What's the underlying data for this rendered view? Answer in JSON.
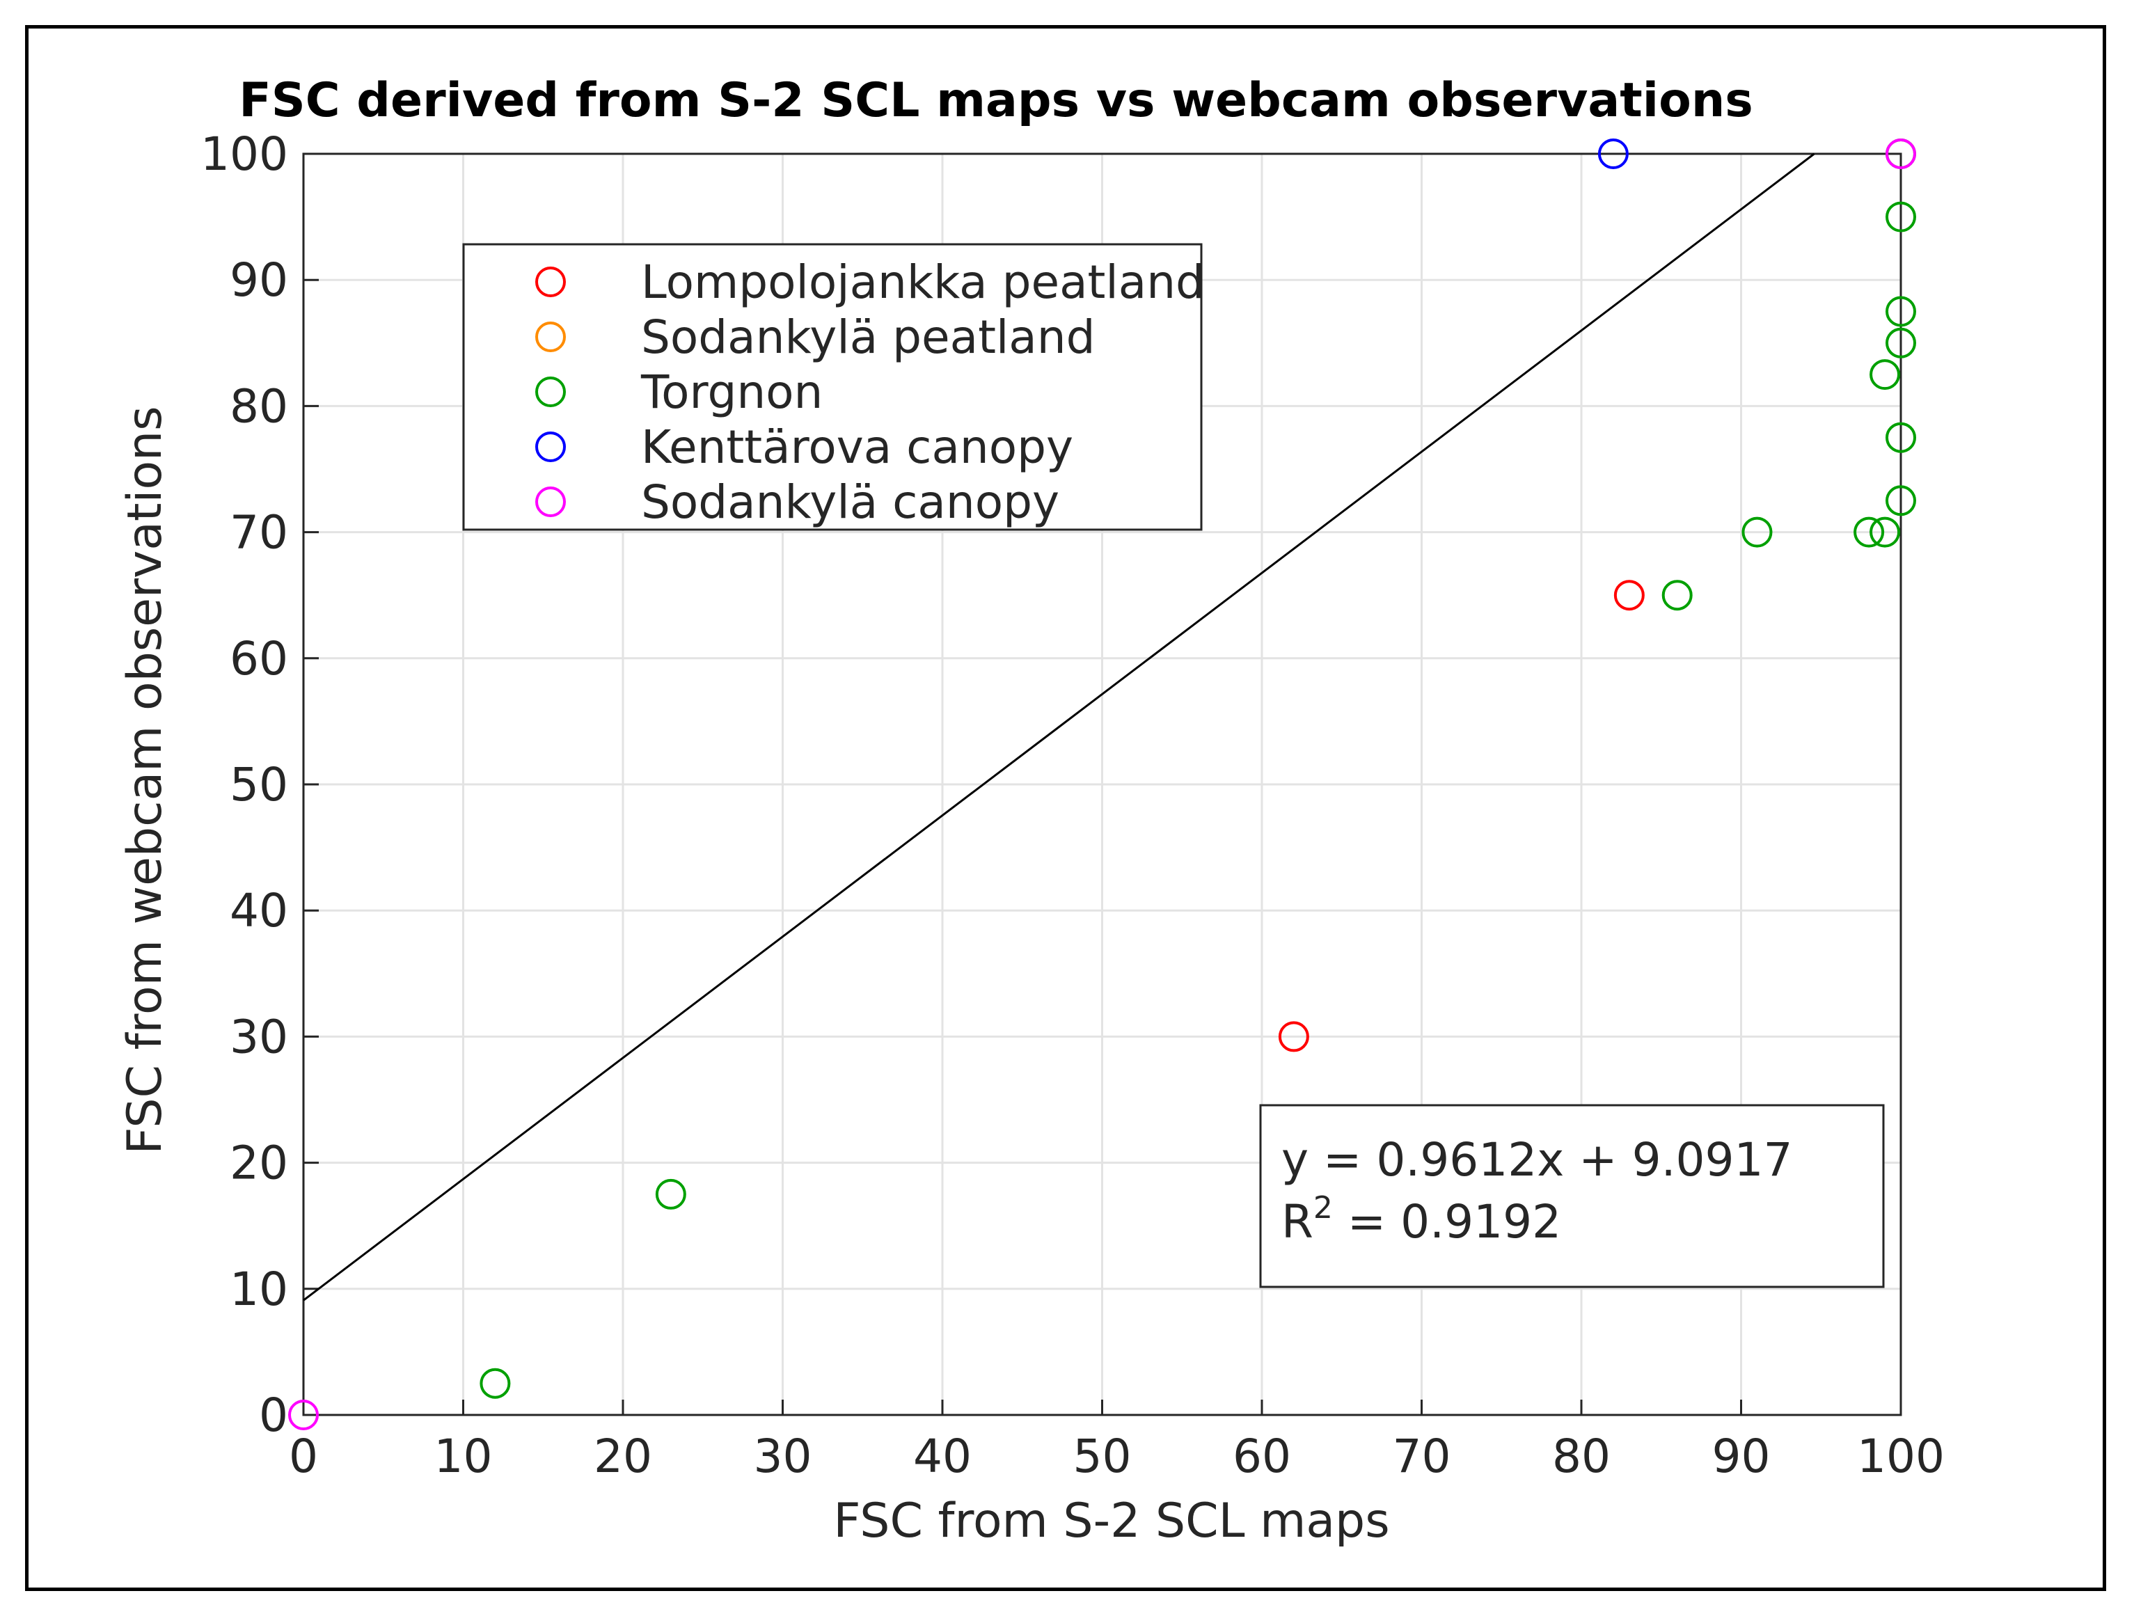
{
  "chart_data": {
    "type": "scatter",
    "title": "FSC derived from S-2 SCL maps vs webcam observations",
    "xlabel": "FSC from S-2 SCL maps",
    "ylabel": "FSC from webcam observations",
    "xlim": [
      0,
      100
    ],
    "ylim": [
      0,
      100
    ],
    "xticks": [
      0,
      10,
      20,
      30,
      40,
      50,
      60,
      70,
      80,
      90,
      100
    ],
    "yticks": [
      0,
      10,
      20,
      30,
      40,
      50,
      60,
      70,
      80,
      90,
      100
    ],
    "grid": true,
    "legend_position": "top-left",
    "series": [
      {
        "name": "Lompolojankka peatland",
        "color": "#ff0000",
        "x": [
          62,
          83
        ],
        "y": [
          30,
          65
        ]
      },
      {
        "name": "Sodankylä peatland",
        "color": "#ff8c00",
        "x": [],
        "y": []
      },
      {
        "name": "Torgnon",
        "color": "#00a000",
        "x": [
          12,
          23,
          86,
          91,
          98,
          99,
          100,
          100,
          100,
          100,
          100,
          99,
          100
        ],
        "y": [
          2.5,
          17.5,
          65,
          70,
          70,
          70,
          72.5,
          77.5,
          85,
          87.5,
          95,
          82.5,
          100
        ]
      },
      {
        "name": "Kenttärova canopy",
        "color": "#0000ff",
        "x": [
          82
        ],
        "y": [
          100
        ]
      },
      {
        "name": "Sodankylä canopy",
        "color": "#ff00ff",
        "x": [
          0,
          100
        ],
        "y": [
          0,
          100
        ]
      }
    ],
    "fit_line": {
      "slope": 0.9612,
      "intercept": 9.0917,
      "color": "#000000"
    },
    "annotation": {
      "equation": "y = 0.9612x + 9.0917",
      "r2_prefix": "R",
      "r2_sup": "2",
      "r2_value": " = 0.9192"
    }
  }
}
